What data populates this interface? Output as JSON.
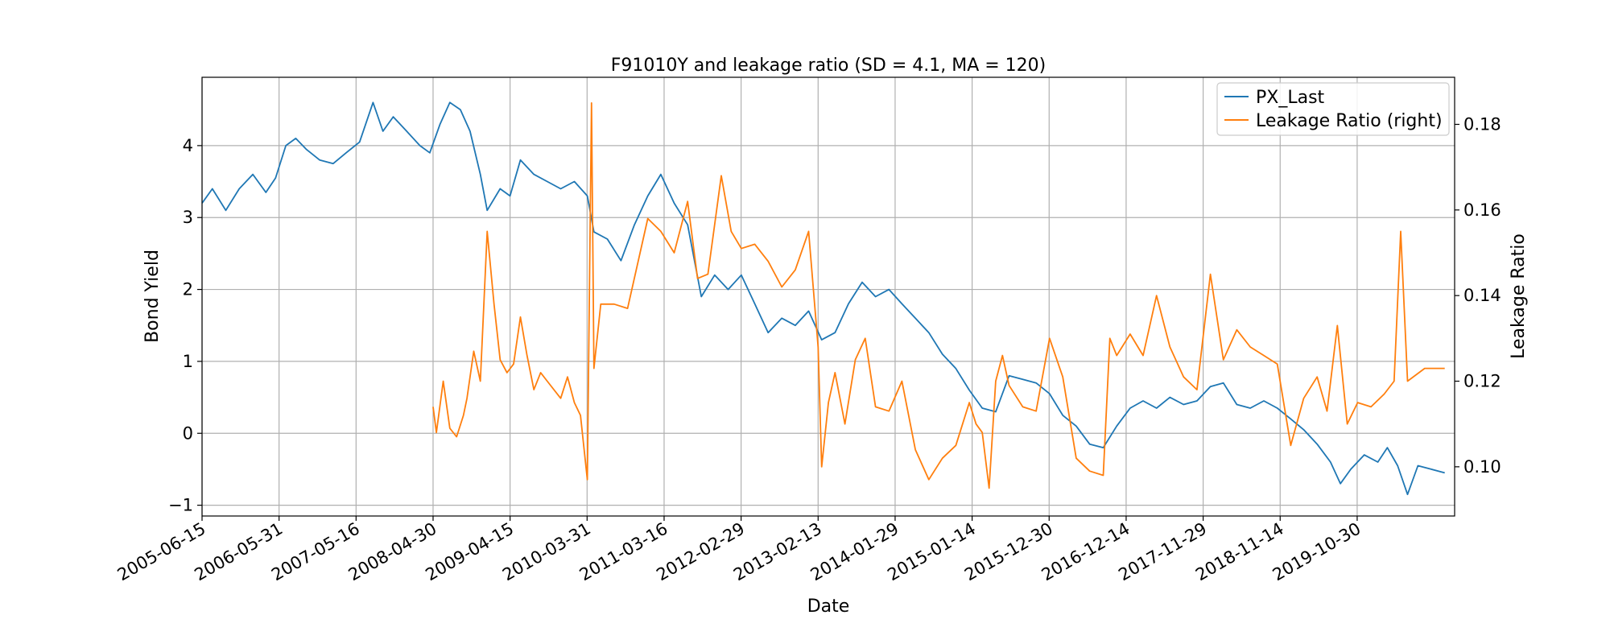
{
  "chart_data": {
    "type": "line",
    "title": "F91010Y and leakage ratio (SD = 4.1, MA = 120)",
    "xlabel": "Date",
    "ylabel": "Bond Yield",
    "ylabel_right": "Leakage Ratio",
    "grid": true,
    "legend_position": "top-right",
    "x_ticks": [
      "2005-06-15",
      "2006-05-31",
      "2007-05-16",
      "2008-04-30",
      "2009-04-15",
      "2010-03-31",
      "2011-03-16",
      "2012-02-29",
      "2013-02-13",
      "2014-01-29",
      "2015-01-14",
      "2015-12-30",
      "2016-12-14",
      "2017-11-29",
      "2018-11-14",
      "2019-10-30"
    ],
    "x_range": [
      "2005-06-15",
      "2021-01-15"
    ],
    "ylim_left": [
      -1.15,
      4.95
    ],
    "yticks_left": [
      "−1",
      "0",
      "1",
      "2",
      "3",
      "4"
    ],
    "ylim_right": [
      0.0885,
      0.191
    ],
    "yticks_right": [
      "0.10",
      "0.12",
      "0.14",
      "0.16",
      "0.18"
    ],
    "series": [
      {
        "name": "PX_Last",
        "axis": "left",
        "color": "#1f77b4",
        "points": [
          [
            "2005-06-15",
            3.2
          ],
          [
            "2005-08-01",
            3.4
          ],
          [
            "2005-10-01",
            3.1
          ],
          [
            "2005-12-01",
            3.4
          ],
          [
            "2006-02-01",
            3.6
          ],
          [
            "2006-04-01",
            3.35
          ],
          [
            "2006-05-15",
            3.55
          ],
          [
            "2006-07-01",
            4.0
          ],
          [
            "2006-08-15",
            4.1
          ],
          [
            "2006-10-01",
            3.95
          ],
          [
            "2006-12-01",
            3.8
          ],
          [
            "2007-02-01",
            3.75
          ],
          [
            "2007-04-01",
            3.9
          ],
          [
            "2007-06-01",
            4.05
          ],
          [
            "2007-08-01",
            4.6
          ],
          [
            "2007-09-15",
            4.2
          ],
          [
            "2007-11-01",
            4.4
          ],
          [
            "2008-01-01",
            4.2
          ],
          [
            "2008-03-01",
            4.0
          ],
          [
            "2008-04-15",
            3.9
          ],
          [
            "2008-06-01",
            4.3
          ],
          [
            "2008-07-15",
            4.6
          ],
          [
            "2008-09-01",
            4.5
          ],
          [
            "2008-10-15",
            4.2
          ],
          [
            "2008-12-01",
            3.6
          ],
          [
            "2009-01-01",
            3.1
          ],
          [
            "2009-03-01",
            3.4
          ],
          [
            "2009-04-15",
            3.3
          ],
          [
            "2009-06-01",
            3.8
          ],
          [
            "2009-08-01",
            3.6
          ],
          [
            "2009-10-01",
            3.5
          ],
          [
            "2009-12-01",
            3.4
          ],
          [
            "2010-02-01",
            3.5
          ],
          [
            "2010-04-01",
            3.3
          ],
          [
            "2010-05-01",
            2.8
          ],
          [
            "2010-07-01",
            2.7
          ],
          [
            "2010-09-01",
            2.4
          ],
          [
            "2010-11-01",
            2.9
          ],
          [
            "2011-01-01",
            3.3
          ],
          [
            "2011-03-01",
            3.6
          ],
          [
            "2011-05-01",
            3.2
          ],
          [
            "2011-07-01",
            2.9
          ],
          [
            "2011-09-01",
            1.9
          ],
          [
            "2011-11-01",
            2.2
          ],
          [
            "2012-01-01",
            2.0
          ],
          [
            "2012-03-01",
            2.2
          ],
          [
            "2012-05-01",
            1.8
          ],
          [
            "2012-07-01",
            1.4
          ],
          [
            "2012-09-01",
            1.6
          ],
          [
            "2012-11-01",
            1.5
          ],
          [
            "2013-01-01",
            1.7
          ],
          [
            "2013-03-01",
            1.3
          ],
          [
            "2013-05-01",
            1.4
          ],
          [
            "2013-07-01",
            1.8
          ],
          [
            "2013-09-01",
            2.1
          ],
          [
            "2013-11-01",
            1.9
          ],
          [
            "2014-01-01",
            2.0
          ],
          [
            "2014-03-01",
            1.8
          ],
          [
            "2014-05-01",
            1.6
          ],
          [
            "2014-07-01",
            1.4
          ],
          [
            "2014-09-01",
            1.1
          ],
          [
            "2014-11-01",
            0.9
          ],
          [
            "2015-01-01",
            0.6
          ],
          [
            "2015-03-01",
            0.35
          ],
          [
            "2015-05-01",
            0.3
          ],
          [
            "2015-07-01",
            0.8
          ],
          [
            "2015-09-01",
            0.75
          ],
          [
            "2015-11-01",
            0.7
          ],
          [
            "2016-01-01",
            0.55
          ],
          [
            "2016-03-01",
            0.25
          ],
          [
            "2016-05-01",
            0.1
          ],
          [
            "2016-07-01",
            -0.15
          ],
          [
            "2016-09-01",
            -0.2
          ],
          [
            "2016-11-01",
            0.1
          ],
          [
            "2017-01-01",
            0.35
          ],
          [
            "2017-03-01",
            0.45
          ],
          [
            "2017-05-01",
            0.35
          ],
          [
            "2017-07-01",
            0.5
          ],
          [
            "2017-09-01",
            0.4
          ],
          [
            "2017-11-01",
            0.45
          ],
          [
            "2018-01-01",
            0.65
          ],
          [
            "2018-03-01",
            0.7
          ],
          [
            "2018-05-01",
            0.4
          ],
          [
            "2018-07-01",
            0.35
          ],
          [
            "2018-09-01",
            0.45
          ],
          [
            "2018-11-01",
            0.35
          ],
          [
            "2019-01-01",
            0.2
          ],
          [
            "2019-03-01",
            0.05
          ],
          [
            "2019-05-01",
            -0.15
          ],
          [
            "2019-07-01",
            -0.4
          ],
          [
            "2019-08-15",
            -0.7
          ],
          [
            "2019-10-01",
            -0.5
          ],
          [
            "2019-12-01",
            -0.3
          ],
          [
            "2020-02-01",
            -0.4
          ],
          [
            "2020-03-15",
            -0.2
          ],
          [
            "2020-05-01",
            -0.45
          ],
          [
            "2020-06-15",
            -0.85
          ],
          [
            "2020-08-01",
            -0.45
          ],
          [
            "2020-10-01",
            -0.5
          ],
          [
            "2020-12-01",
            -0.55
          ]
        ]
      },
      {
        "name": "Leakage Ratio (right)",
        "axis": "right",
        "color": "#ff7f0e",
        "points": [
          [
            "2008-04-30",
            0.114
          ],
          [
            "2008-05-15",
            0.108
          ],
          [
            "2008-06-15",
            0.12
          ],
          [
            "2008-07-15",
            0.109
          ],
          [
            "2008-08-15",
            0.107
          ],
          [
            "2008-09-15",
            0.112
          ],
          [
            "2008-10-01",
            0.116
          ],
          [
            "2008-11-01",
            0.127
          ],
          [
            "2008-12-01",
            0.12
          ],
          [
            "2009-01-01",
            0.155
          ],
          [
            "2009-02-01",
            0.138
          ],
          [
            "2009-03-01",
            0.125
          ],
          [
            "2009-04-01",
            0.122
          ],
          [
            "2009-05-01",
            0.124
          ],
          [
            "2009-06-01",
            0.135
          ],
          [
            "2009-07-01",
            0.126
          ],
          [
            "2009-08-01",
            0.118
          ],
          [
            "2009-09-01",
            0.122
          ],
          [
            "2009-10-01",
            0.12
          ],
          [
            "2009-12-01",
            0.116
          ],
          [
            "2010-01-01",
            0.121
          ],
          [
            "2010-02-01",
            0.115
          ],
          [
            "2010-03-01",
            0.112
          ],
          [
            "2010-04-01",
            0.097
          ],
          [
            "2010-04-20",
            0.185
          ],
          [
            "2010-05-01",
            0.123
          ],
          [
            "2010-06-01",
            0.138
          ],
          [
            "2010-08-01",
            0.138
          ],
          [
            "2010-10-01",
            0.137
          ],
          [
            "2011-01-01",
            0.158
          ],
          [
            "2011-03-01",
            0.155
          ],
          [
            "2011-05-01",
            0.15
          ],
          [
            "2011-07-01",
            0.162
          ],
          [
            "2011-08-15",
            0.144
          ],
          [
            "2011-10-01",
            0.145
          ],
          [
            "2011-12-01",
            0.168
          ],
          [
            "2012-01-15",
            0.155
          ],
          [
            "2012-03-01",
            0.151
          ],
          [
            "2012-05-01",
            0.152
          ],
          [
            "2012-07-01",
            0.148
          ],
          [
            "2012-09-01",
            0.142
          ],
          [
            "2012-11-01",
            0.146
          ],
          [
            "2013-01-01",
            0.155
          ],
          [
            "2013-02-13",
            0.128
          ],
          [
            "2013-03-01",
            0.1
          ],
          [
            "2013-04-01",
            0.115
          ],
          [
            "2013-05-01",
            0.122
          ],
          [
            "2013-06-15",
            0.11
          ],
          [
            "2013-08-01",
            0.125
          ],
          [
            "2013-09-15",
            0.13
          ],
          [
            "2013-11-01",
            0.114
          ],
          [
            "2014-01-01",
            0.113
          ],
          [
            "2014-03-01",
            0.12
          ],
          [
            "2014-05-01",
            0.104
          ],
          [
            "2014-07-01",
            0.097
          ],
          [
            "2014-09-01",
            0.102
          ],
          [
            "2014-11-01",
            0.105
          ],
          [
            "2015-01-01",
            0.115
          ],
          [
            "2015-02-01",
            0.11
          ],
          [
            "2015-03-01",
            0.108
          ],
          [
            "2015-04-01",
            0.095
          ],
          [
            "2015-05-01",
            0.12
          ],
          [
            "2015-06-01",
            0.126
          ],
          [
            "2015-07-01",
            0.119
          ],
          [
            "2015-09-01",
            0.114
          ],
          [
            "2015-11-01",
            0.113
          ],
          [
            "2016-01-01",
            0.13
          ],
          [
            "2016-03-01",
            0.121
          ],
          [
            "2016-05-01",
            0.102
          ],
          [
            "2016-07-01",
            0.099
          ],
          [
            "2016-09-01",
            0.098
          ],
          [
            "2016-10-01",
            0.13
          ],
          [
            "2016-11-01",
            0.126
          ],
          [
            "2017-01-01",
            0.131
          ],
          [
            "2017-03-01",
            0.126
          ],
          [
            "2017-05-01",
            0.14
          ],
          [
            "2017-07-01",
            0.128
          ],
          [
            "2017-09-01",
            0.121
          ],
          [
            "2017-11-01",
            0.118
          ],
          [
            "2018-01-01",
            0.145
          ],
          [
            "2018-03-01",
            0.125
          ],
          [
            "2018-05-01",
            0.132
          ],
          [
            "2018-07-01",
            0.128
          ],
          [
            "2018-09-01",
            0.126
          ],
          [
            "2018-11-01",
            0.124
          ],
          [
            "2019-01-01",
            0.105
          ],
          [
            "2019-03-01",
            0.116
          ],
          [
            "2019-05-01",
            0.121
          ],
          [
            "2019-06-15",
            0.113
          ],
          [
            "2019-08-01",
            0.133
          ],
          [
            "2019-09-15",
            0.11
          ],
          [
            "2019-11-01",
            0.115
          ],
          [
            "2020-01-01",
            0.114
          ],
          [
            "2020-03-01",
            0.117
          ],
          [
            "2020-04-15",
            0.12
          ],
          [
            "2020-05-15",
            0.155
          ],
          [
            "2020-06-15",
            0.12
          ],
          [
            "2020-09-01",
            0.123
          ],
          [
            "2020-12-01",
            0.123
          ]
        ]
      }
    ]
  }
}
